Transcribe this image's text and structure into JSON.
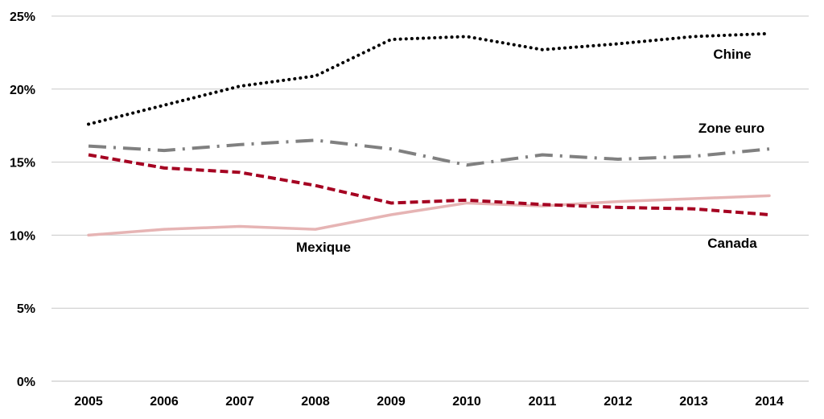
{
  "chart_data": {
    "type": "line",
    "title": "",
    "xlabel": "",
    "ylabel": "",
    "x": [
      "2005",
      "2006",
      "2007",
      "2008",
      "2009",
      "2010",
      "2011",
      "2012",
      "2013",
      "2014"
    ],
    "ylim": [
      0,
      25
    ],
    "yticks": [
      "0%",
      "5%",
      "10%",
      "15%",
      "20%",
      "25%"
    ],
    "grid": true,
    "legend": "none (series labelled directly on the chart)",
    "series": [
      {
        "name": "Chine",
        "color": "#000000",
        "style": "dotted",
        "values": [
          17.6,
          18.9,
          20.2,
          20.9,
          23.4,
          23.6,
          22.7,
          23.1,
          23.6,
          23.8
        ]
      },
      {
        "name": "Zone euro",
        "color": "#808080",
        "style": "dash-dot",
        "values": [
          16.1,
          15.8,
          16.2,
          16.5,
          15.9,
          14.8,
          15.5,
          15.2,
          15.4,
          15.9
        ]
      },
      {
        "name": "Canada",
        "color": "#a50021",
        "style": "dashed",
        "values": [
          15.5,
          14.6,
          14.3,
          13.4,
          12.2,
          12.4,
          12.1,
          11.9,
          11.8,
          11.4
        ]
      },
      {
        "name": "Mexique",
        "color": "#e6b4b4",
        "style": "solid",
        "values": [
          10.0,
          10.4,
          10.6,
          10.4,
          11.4,
          12.2,
          12.0,
          12.3,
          12.5,
          12.7
        ]
      }
    ]
  }
}
